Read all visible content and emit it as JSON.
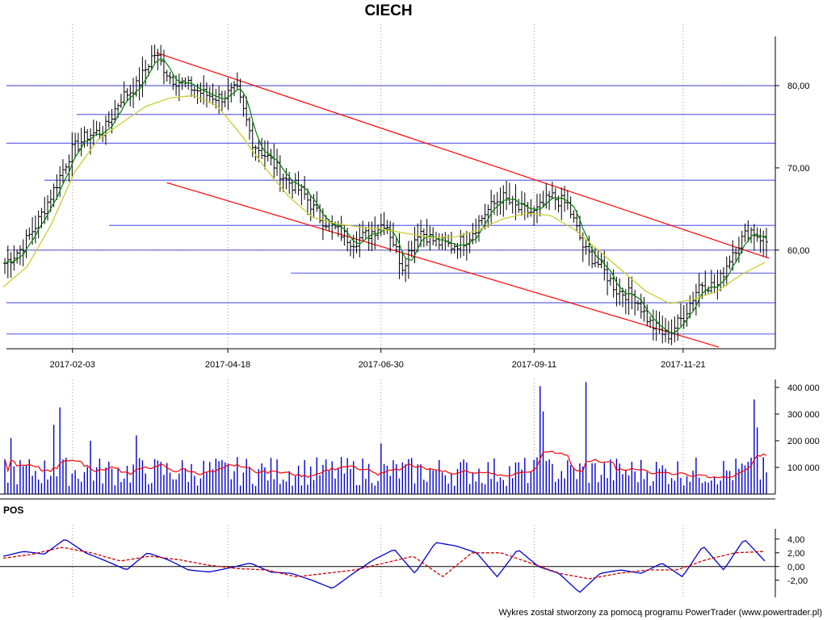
{
  "chart_data": [
    {
      "type": "ohlc",
      "title": "CIECH",
      "xlabel": "",
      "ylabel": "",
      "x_tick_labels": [
        "2017-02-03",
        "2017-04-18",
        "2017-06-30",
        "2017-09-11",
        "2017-11-21"
      ],
      "y_tick_labels": [
        "80,00",
        "70,00",
        "60,00"
      ],
      "y_ticks": [
        80,
        70,
        60
      ],
      "ylim": [
        48,
        86
      ],
      "grid": "dotted-vertical",
      "price_path": [
        58.4,
        60.2,
        63.5,
        67.5,
        72.0,
        74.0,
        74.5,
        78.5,
        80.0,
        84.0,
        81.0,
        80.0,
        79.0,
        78.5,
        79.5,
        73.0,
        71.0,
        68.5,
        67.0,
        64.0,
        62.5,
        61.0,
        62.0,
        63.5,
        58.0,
        62.5,
        61.0,
        60.5,
        61.5,
        64.5,
        66.5,
        65.0,
        64.5,
        66.5,
        65.5,
        60.0,
        58.0,
        55.0,
        54.5,
        51.0,
        49.5,
        52.0,
        56.0,
        55.5,
        60.0,
        62.5,
        61.0
      ],
      "moving_average_path": [
        55.5,
        58.0,
        63.0,
        69.5,
        73.5,
        75.5,
        77.5,
        78.5,
        78.8,
        77.5,
        74.0,
        70.0,
        66.5,
        64.0,
        63.2,
        62.8,
        62.5,
        62.0,
        61.5,
        61.6,
        62.5,
        63.8,
        64.5,
        64.2,
        62.5,
        60.0,
        57.5,
        55.0,
        53.5,
        54.0,
        55.0,
        57.0,
        58.5
      ],
      "support_resistance_levels": [
        80.0,
        76.5,
        73.0,
        68.5,
        63.0,
        60.0,
        57.2,
        53.6,
        49.8
      ],
      "trend_lines": [
        {
          "from": [
            "2017-03-15",
            84.0
          ],
          "to": [
            "2018-01-01",
            59.0
          ]
        },
        {
          "from": [
            "2017-03-20",
            68.2
          ],
          "to": [
            "2017-12-08",
            48.2
          ]
        }
      ]
    },
    {
      "type": "bar",
      "title": "",
      "y_tick_labels": [
        "400 000",
        "300 000",
        "200 000",
        "100 000"
      ],
      "y_ticks": [
        400000,
        300000,
        200000,
        100000
      ],
      "ylim": [
        0,
        430000
      ],
      "volume_spikes": [
        {
          "date": "2017-01-04",
          "value": 210000
        },
        {
          "date": "2017-01-24",
          "value": 260000
        },
        {
          "date": "2017-01-27",
          "value": 325000
        },
        {
          "date": "2017-02-11",
          "value": 200000
        },
        {
          "date": "2017-03-05",
          "value": 220000
        },
        {
          "date": "2017-07-01",
          "value": 190000
        },
        {
          "date": "2017-09-15",
          "value": 405000
        },
        {
          "date": "2017-09-17",
          "value": 310000
        },
        {
          "date": "2017-10-08",
          "value": 420000
        },
        {
          "date": "2017-12-27",
          "value": 355000
        },
        {
          "date": "2017-12-28",
          "value": 250000
        }
      ]
    },
    {
      "type": "line",
      "title": "POS",
      "y_tick_labels": [
        "4,00",
        "2,00",
        "0,00",
        "-2,00"
      ],
      "y_ticks": [
        4,
        2,
        0,
        -2
      ],
      "ylim": [
        -4.5,
        5.5
      ],
      "series": [
        {
          "color": "#0000cc",
          "style": "solid",
          "values": [
            1.5,
            2.2,
            1.8,
            4.0,
            2.0,
            0.8,
            -0.5,
            2.0,
            1.0,
            -0.5,
            -0.8,
            -0.2,
            0.5,
            -0.8,
            -1.0,
            -2.0,
            -3.2,
            -1.0,
            1.0,
            2.5,
            -1.0,
            3.5,
            3.0,
            2.0,
            -1.5,
            2.5,
            0.0,
            -1.0,
            -3.8,
            -1.0,
            -0.5,
            -1.0,
            0.5,
            -1.5,
            3.0,
            -0.5,
            4.0,
            0.8
          ]
        },
        {
          "color": "#cc0000",
          "style": "dashed",
          "values": [
            1.2,
            1.8,
            2.8,
            2.0,
            0.8,
            1.5,
            1.0,
            0.2,
            -0.3,
            -0.5,
            -1.5,
            -1.0,
            -0.5,
            0.5,
            1.5,
            -1.5,
            2.0,
            2.0,
            0.5,
            -1.0,
            -1.8,
            -1.0,
            -0.5,
            -0.5,
            1.0,
            2.0,
            2.2
          ]
        }
      ]
    }
  ],
  "footer": "Wykres został stworzony za pomocą programu PowerTrader (www.powertrader.pl)",
  "colors": {
    "candle": "#000000",
    "fast_ma": "#008000",
    "slow_ma": "#cccc33",
    "trend": "#ff0000",
    "levels": "#6666ee",
    "volume_bar": "#0000cc",
    "volume_avg": "#ff0000",
    "pos_line": "#0000cc",
    "pos_signal": "#ff0000"
  }
}
